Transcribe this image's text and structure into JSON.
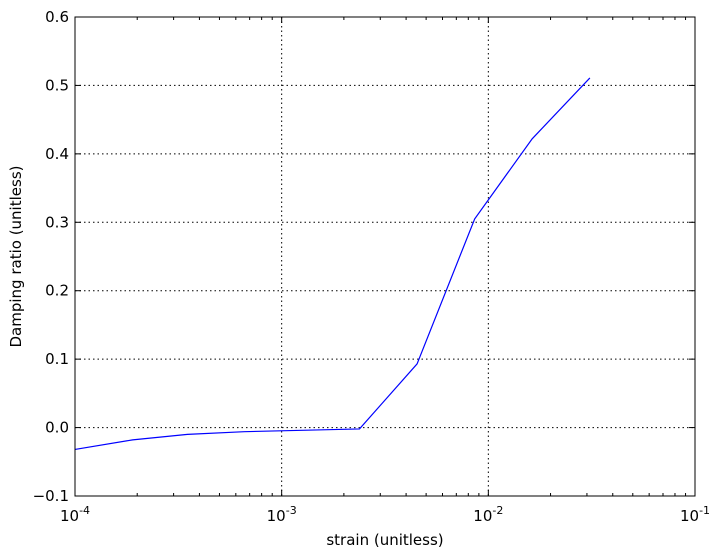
{
  "chart_data": {
    "type": "line",
    "xlabel": "strain (unitless)",
    "ylabel": "Damping ratio (unitless)",
    "xscale": "log",
    "xlim": [
      0.0001,
      0.1
    ],
    "ylim": [
      -0.1,
      0.6
    ],
    "grid": true,
    "x_ticks": [
      {
        "value": 0.0001,
        "base": "10",
        "exp": "-4"
      },
      {
        "value": 0.001,
        "base": "10",
        "exp": "-3"
      },
      {
        "value": 0.01,
        "base": "10",
        "exp": "-2"
      },
      {
        "value": 0.1,
        "base": "10",
        "exp": "-1"
      }
    ],
    "y_ticks": [
      {
        "value": -0.1,
        "label": "−0.1"
      },
      {
        "value": 0.0,
        "label": "0.0"
      },
      {
        "value": 0.1,
        "label": "0.1"
      },
      {
        "value": 0.2,
        "label": "0.2"
      },
      {
        "value": 0.3,
        "label": "0.3"
      },
      {
        "value": 0.4,
        "label": "0.4"
      },
      {
        "value": 0.5,
        "label": "0.5"
      },
      {
        "value": 0.6,
        "label": "0.6"
      }
    ],
    "series": [
      {
        "color": "#0000ff",
        "x": [
          0.0001,
          0.00019,
          0.00035,
          0.00066,
          0.00125,
          0.00238,
          0.00452,
          0.00859,
          0.0163,
          0.031
        ],
        "y": [
          -0.032,
          -0.018,
          -0.01,
          -0.006,
          -0.004,
          -0.002,
          0.093,
          0.305,
          0.422,
          0.511
        ]
      }
    ]
  }
}
